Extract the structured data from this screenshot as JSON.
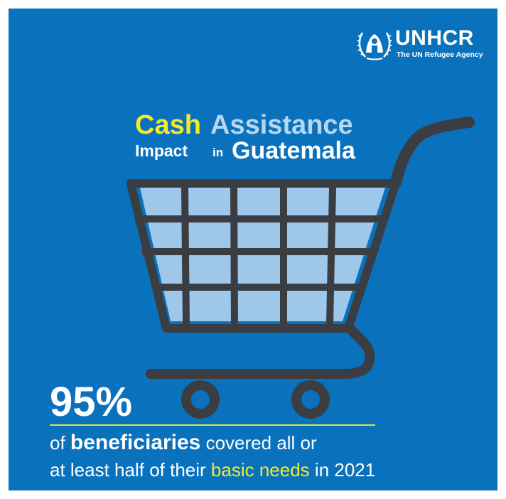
{
  "logo": {
    "name": "UNHCR",
    "tagline": "The UN Refugee Agency"
  },
  "title": {
    "word1": "Cash",
    "word2": "Assistance",
    "word3": "Impact",
    "word4": "in",
    "word5": "Guatemala"
  },
  "statistic": {
    "value": "95%",
    "line1_prefix": "of",
    "line1_bold": "beneficiaries",
    "line1_suffix": "covered all or",
    "line2_prefix": "at least half of their",
    "line2_highlight": "basic needs",
    "line2_suffix": "in 2021"
  },
  "colors": {
    "background": "#0a72bd",
    "cart": "#3a3d42",
    "basket_fill": "#9ec7e9",
    "highlight_yellow": "#f4ea28",
    "light_blue_text": "#b7d7f1",
    "rule": "#d8e64a"
  },
  "icons": {
    "cart": "shopping-cart-icon",
    "logo": "unhcr-emblem-icon"
  }
}
